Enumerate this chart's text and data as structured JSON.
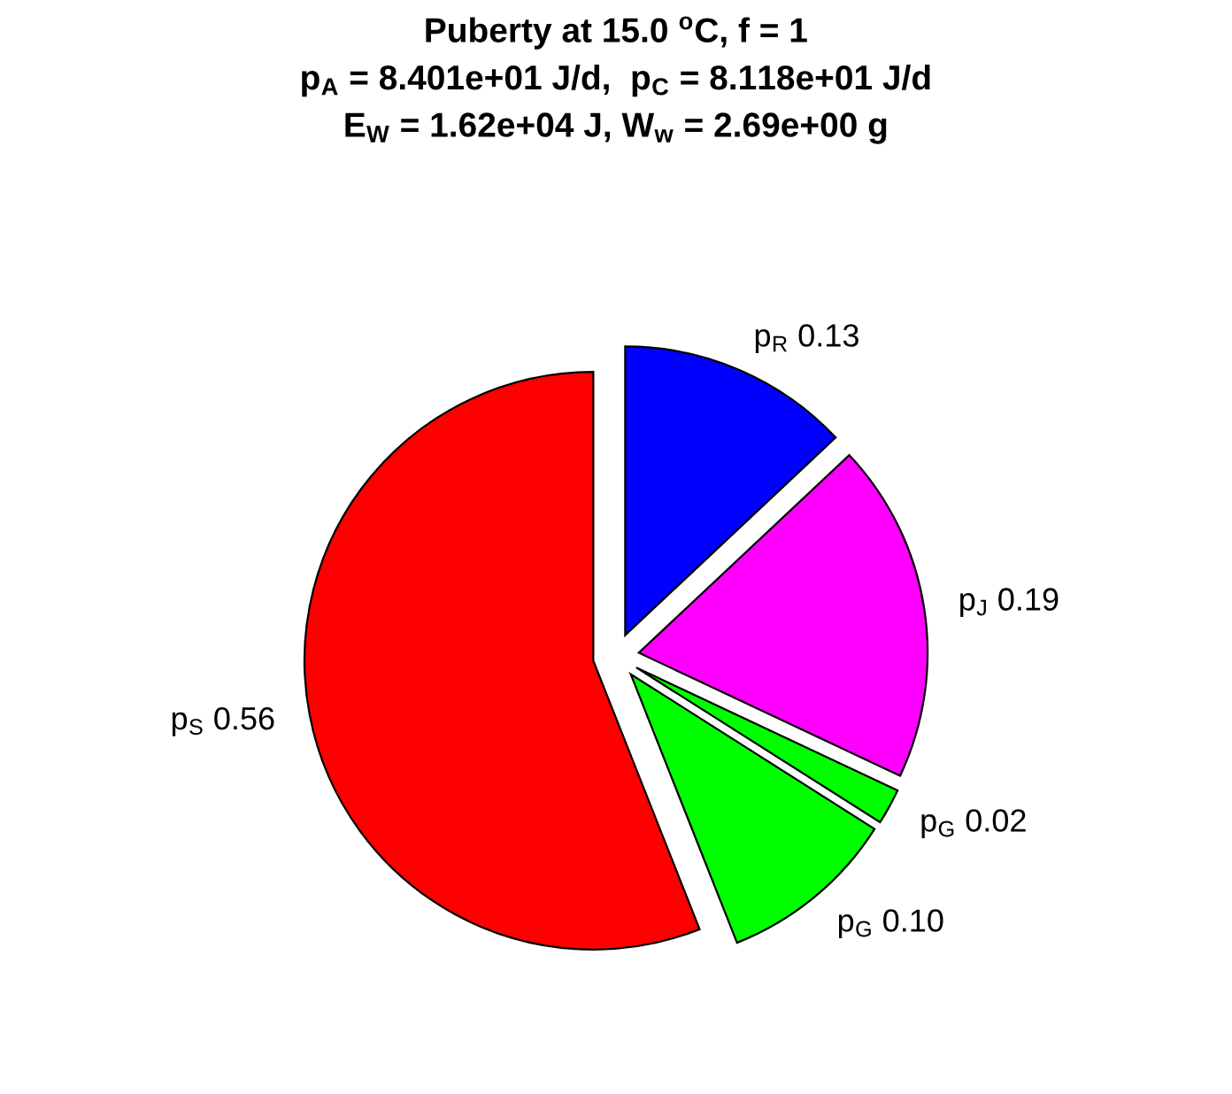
{
  "chart_data": {
    "type": "pie",
    "title": "Puberty at 15.0 $^{o}$C, f = 1\np$_{A}$ = 8.401e+01 J/d,  p$_{C}$ = 8.118e+01 J/d\nE$_{W}$ = 1.62e+04 J, W$_{w}$ = 2.69e+00 g",
    "categories": [
      "p$_{R}$",
      "p$_{J}$",
      "p$_{G}$",
      "p$_{G}$",
      "p$_{S}$"
    ],
    "values": [
      0.13,
      0.19,
      0.02,
      0.1,
      0.56
    ],
    "value_labels": [
      "0.13",
      "0.19",
      "0.02",
      "0.10",
      "0.56"
    ],
    "colors": [
      "#0000ff",
      "#ff00ff",
      "#00ff00",
      "#00ff00",
      "#ff0000"
    ]
  }
}
